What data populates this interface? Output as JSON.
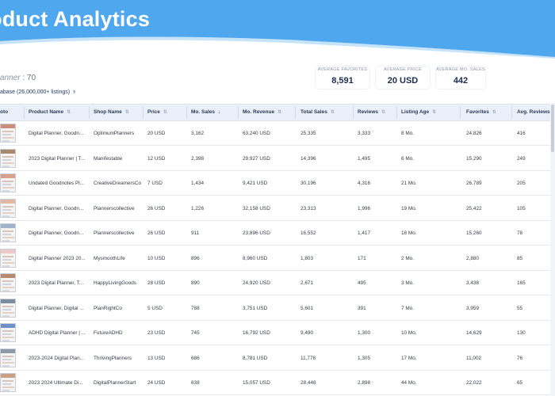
{
  "header": {
    "title": "oduct Analytics"
  },
  "results": {
    "label": "anner",
    "separator": " : ",
    "count": "70"
  },
  "database_link": {
    "label": "abase (26,000,000+ listings)",
    "chevron": "›"
  },
  "stats": [
    {
      "label": "AVERAGE FAVORITES",
      "value": "8,591"
    },
    {
      "label": "AVERAGE PRICE",
      "value": "20 USD"
    },
    {
      "label": "AVERAGE MO. SALES",
      "value": "442"
    }
  ],
  "table": {
    "columns": [
      {
        "key": "photo",
        "label": "oto"
      },
      {
        "key": "name",
        "label": "Product Name",
        "sort": "⇅"
      },
      {
        "key": "shop",
        "label": "Shop Name",
        "sort": "⇅"
      },
      {
        "key": "price",
        "label": "Price",
        "sort": "⇅"
      },
      {
        "key": "mo_sales",
        "label": "Mo. Sales",
        "sort": "↓"
      },
      {
        "key": "mo_revenue",
        "label": "Mo. Revenue",
        "sort": "⇅"
      },
      {
        "key": "total_sales",
        "label": "Total Sales",
        "sort": "⇅"
      },
      {
        "key": "reviews",
        "label": "Reviews",
        "sort": "⇅"
      },
      {
        "key": "listing_age",
        "label": "Listing Age",
        "sort": "⇅"
      },
      {
        "key": "favorites",
        "label": "Favorites",
        "sort": "⇅"
      },
      {
        "key": "avg_reviews",
        "label": "Avg. Reviews",
        "sort": "⇅"
      }
    ],
    "rows": [
      {
        "name": "Digital Planner, Goodn...",
        "shop": "OptimumPlanners",
        "price": "20 USD",
        "mo_sales": "3,162",
        "mo_revenue": "63,240 USD",
        "total_sales": "25,335",
        "reviews": "3,333",
        "listing_age": "8 Mo.",
        "favorites": "24,826",
        "avg_reviews": "416",
        "thumb_color": "#c98f7a"
      },
      {
        "name": "2023 Digital Planner | T...",
        "shop": "Manifestable",
        "price": "12 USD",
        "mo_sales": "2,398",
        "mo_revenue": "29,927 USD",
        "total_sales": "14,396",
        "reviews": "1,495",
        "listing_age": "6 Mo.",
        "favorites": "15,290",
        "avg_reviews": "249",
        "thumb_color": "#a9876f"
      },
      {
        "name": "Undated Goodnotes Pl...",
        "shop": "CreativeDreamersCo",
        "price": "7 USD",
        "mo_sales": "1,434",
        "mo_revenue": "9,421 USD",
        "total_sales": "30,196",
        "reviews": "4,316",
        "listing_age": "21 Mo.",
        "favorites": "26,789",
        "avg_reviews": "205",
        "thumb_color": "#d9a08c"
      },
      {
        "name": "Digital Planner, Goodn...",
        "shop": "Plannerscollective",
        "price": "26 USD",
        "mo_sales": "1,226",
        "mo_revenue": "32,158 USD",
        "total_sales": "23,313",
        "reviews": "1,996",
        "listing_age": "19 Mo.",
        "favorites": "25,422",
        "avg_reviews": "105",
        "thumb_color": "#e3b8a0"
      },
      {
        "name": "Digital Planner, Goodn...",
        "shop": "Plannerscollective",
        "price": "26 USD",
        "mo_sales": "911",
        "mo_revenue": "23,896 USD",
        "total_sales": "16,552",
        "reviews": "1,417",
        "listing_age": "18 Mo.",
        "favorites": "15,260",
        "avg_reviews": "78",
        "thumb_color": "#9fb3c8"
      },
      {
        "name": "Digital Planner 2023 20...",
        "shop": "MysmoothLife",
        "price": "10 USD",
        "mo_sales": "896",
        "mo_revenue": "8,960 USD",
        "total_sales": "1,803",
        "reviews": "171",
        "listing_age": "2 Mo.",
        "favorites": "2,880",
        "avg_reviews": "85",
        "thumb_color": "#efc9c9"
      },
      {
        "name": "2023 Digital Planner, T...",
        "shop": "HappyLivingGoods",
        "price": "28 USD",
        "mo_sales": "890",
        "mo_revenue": "24,920 USD",
        "total_sales": "2,671",
        "reviews": "495",
        "listing_age": "3 Mo.",
        "favorites": "3,438",
        "avg_reviews": "165",
        "thumb_color": "#b98a6e"
      },
      {
        "name": "Digital Planner, Digital ...",
        "shop": "PlanRightCo",
        "price": "5 USD",
        "mo_sales": "788",
        "mo_revenue": "3,751 USD",
        "total_sales": "5,601",
        "reviews": "391",
        "listing_age": "7 Mo.",
        "favorites": "3,959",
        "avg_reviews": "55",
        "thumb_color": "#7c8c9c"
      },
      {
        "name": "ADHD Digital Planner | ...",
        "shop": "FutureADHD",
        "price": "23 USD",
        "mo_sales": "745",
        "mo_revenue": "16,792 USD",
        "total_sales": "9,490",
        "reviews": "1,300",
        "listing_age": "10 Mo.",
        "favorites": "14,629",
        "avg_reviews": "130",
        "thumb_color": "#6f8fc9"
      },
      {
        "name": "2023-2024 Digital Plan...",
        "shop": "ThrivingPlanners",
        "price": "13 USD",
        "mo_sales": "686",
        "mo_revenue": "8,781 USD",
        "total_sales": "11,778",
        "reviews": "1,305",
        "listing_age": "17 Mo.",
        "favorites": "11,002",
        "avg_reviews": "76",
        "thumb_color": "#8d9aa7"
      },
      {
        "name": "2023 2024 Ultimate Di...",
        "shop": "DigitalPlannerStart",
        "price": "24 USD",
        "mo_sales": "638",
        "mo_revenue": "15,057 USD",
        "total_sales": "28,448",
        "reviews": "2,898",
        "listing_age": "44 Mo.",
        "favorites": "22,022",
        "avg_reviews": "65",
        "thumb_color": "#c7a184"
      }
    ]
  },
  "colors": {
    "header": "#4fa7ee",
    "header_light": "#7cc0f5",
    "table_header": "#e9f0f9",
    "accent": "#1b2d4f"
  }
}
